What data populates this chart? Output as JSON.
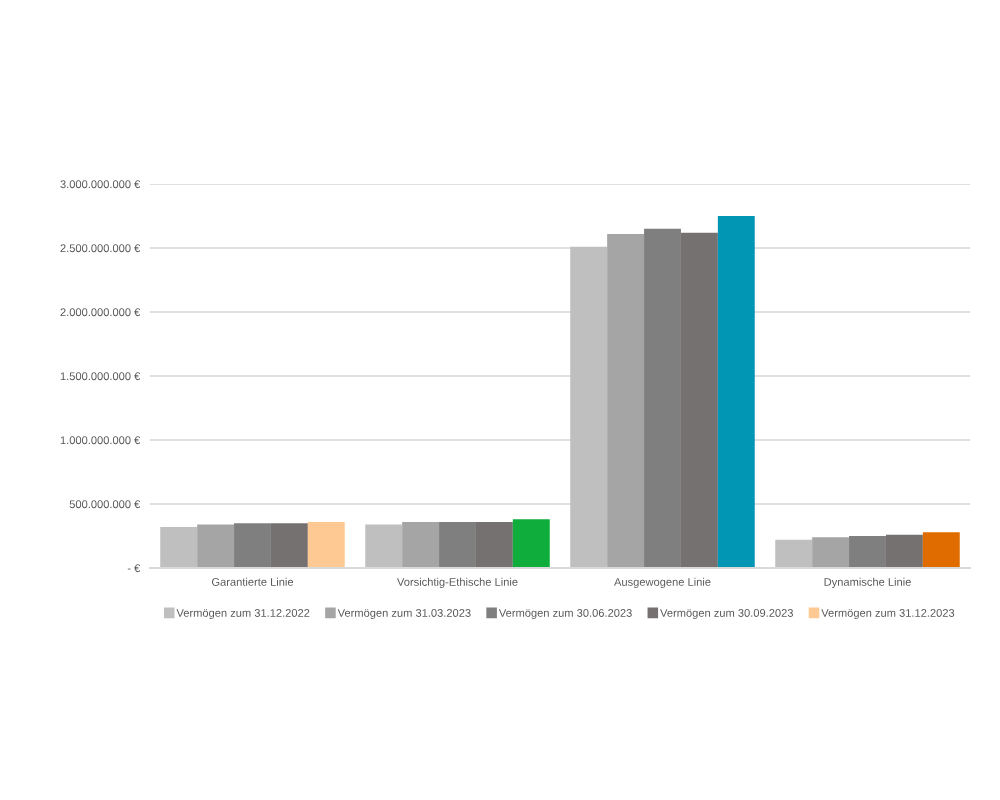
{
  "chart_data": {
    "type": "bar",
    "categories": [
      "Garantierte Linie",
      "Vorsichtig-Ethische Linie",
      "Ausgewogene Linie",
      "Dynamische Linie"
    ],
    "series": [
      {
        "name": "Vermögen zum 31.12.2022",
        "color": "#bfbfbf",
        "values": [
          320000000,
          340000000,
          2510000000,
          220000000
        ]
      },
      {
        "name": "Vermögen zum 31.03.2023",
        "color": "#a5a5a5",
        "values": [
          340000000,
          360000000,
          2610000000,
          240000000
        ]
      },
      {
        "name": "Vermögen zum 30.06.2023",
        "color": "#7f7f7f",
        "values": [
          350000000,
          360000000,
          2650000000,
          250000000
        ]
      },
      {
        "name": "Vermögen zum 30.09.2023",
        "color": "#767171",
        "values": [
          350000000,
          360000000,
          2620000000,
          260000000
        ]
      },
      {
        "name": "Vermögen zum 31.12.2023",
        "color": "#ffc993",
        "colors": [
          "#ffc993",
          "#0ead3c",
          "#0096b4",
          "#e06c00"
        ],
        "values": [
          360000000,
          380000000,
          2750000000,
          280000000
        ]
      }
    ],
    "ylim": [
      0,
      3000000000
    ],
    "yticks": [
      {
        "value": 0,
        "label": "- €"
      },
      {
        "value": 500000000,
        "label": "500.000.000 €"
      },
      {
        "value": 1000000000,
        "label": "1.000.000.000 €"
      },
      {
        "value": 1500000000,
        "label": "1.500.000.000 €"
      },
      {
        "value": 2000000000,
        "label": "2.000.000.000 €"
      },
      {
        "value": 2500000000,
        "label": "2.500.000.000 €"
      },
      {
        "value": 3000000000,
        "label": "3.000.000.000 €"
      }
    ],
    "grid": "y",
    "legend": "bottom"
  }
}
